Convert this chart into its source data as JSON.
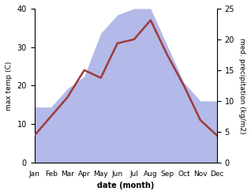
{
  "months": [
    "Jan",
    "Feb",
    "Mar",
    "Apr",
    "May",
    "Jun",
    "Jul",
    "Aug",
    "Sep",
    "Oct",
    "Nov",
    "Dec"
  ],
  "temperature": [
    7,
    12,
    17,
    24,
    22,
    31,
    32,
    37,
    28,
    20,
    11,
    7
  ],
  "precipitation": [
    9,
    9,
    12,
    14,
    21,
    24,
    25,
    25,
    19,
    13,
    10,
    10
  ],
  "temp_color": "#9e3a3a",
  "precip_color_fill": "#b3b9e8",
  "temp_ylim": [
    0,
    40
  ],
  "precip_ylim": [
    0,
    25
  ],
  "xlabel": "date (month)",
  "ylabel_left": "max temp (C)",
  "ylabel_right": "med. precipitation (kg/m2)",
  "background_color": "#ffffff",
  "temp_linewidth": 1.8
}
